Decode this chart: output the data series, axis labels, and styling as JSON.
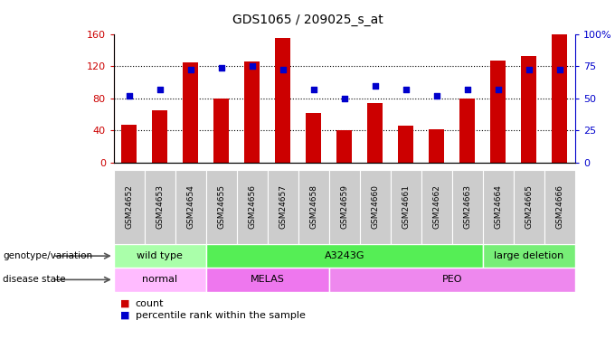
{
  "title": "GDS1065 / 209025_s_at",
  "samples": [
    "GSM24652",
    "GSM24653",
    "GSM24654",
    "GSM24655",
    "GSM24656",
    "GSM24657",
    "GSM24658",
    "GSM24659",
    "GSM24660",
    "GSM24661",
    "GSM24662",
    "GSM24663",
    "GSM24664",
    "GSM24665",
    "GSM24666"
  ],
  "counts": [
    47,
    65,
    125,
    80,
    126,
    155,
    62,
    40,
    74,
    46,
    42,
    80,
    127,
    132,
    159
  ],
  "percentile": [
    52,
    57,
    72,
    74,
    75,
    72,
    57,
    50,
    60,
    57,
    52,
    57,
    57,
    72,
    72
  ],
  "ylim_left": [
    0,
    160
  ],
  "ylim_right": [
    0,
    100
  ],
  "yticks_left": [
    0,
    40,
    80,
    120,
    160
  ],
  "yticks_right": [
    0,
    25,
    50,
    75,
    100
  ],
  "bar_color": "#cc0000",
  "dot_color": "#0000cc",
  "sample_label_bg": "#cccccc",
  "genotype_groups": [
    {
      "label": "wild type",
      "start": 0,
      "end": 3,
      "color": "#aaffaa"
    },
    {
      "label": "A3243G",
      "start": 3,
      "end": 12,
      "color": "#55ee55"
    },
    {
      "label": "large deletion",
      "start": 12,
      "end": 15,
      "color": "#77ee77"
    }
  ],
  "disease_groups": [
    {
      "label": "normal",
      "start": 0,
      "end": 3,
      "color": "#ffbbff"
    },
    {
      "label": "MELAS",
      "start": 3,
      "end": 7,
      "color": "#ee77ee"
    },
    {
      "label": "PEO",
      "start": 7,
      "end": 15,
      "color": "#ee88ee"
    }
  ],
  "left_axis_color": "#cc0000",
  "right_axis_color": "#0000cc",
  "grid_yticks": [
    40,
    80,
    120
  ]
}
